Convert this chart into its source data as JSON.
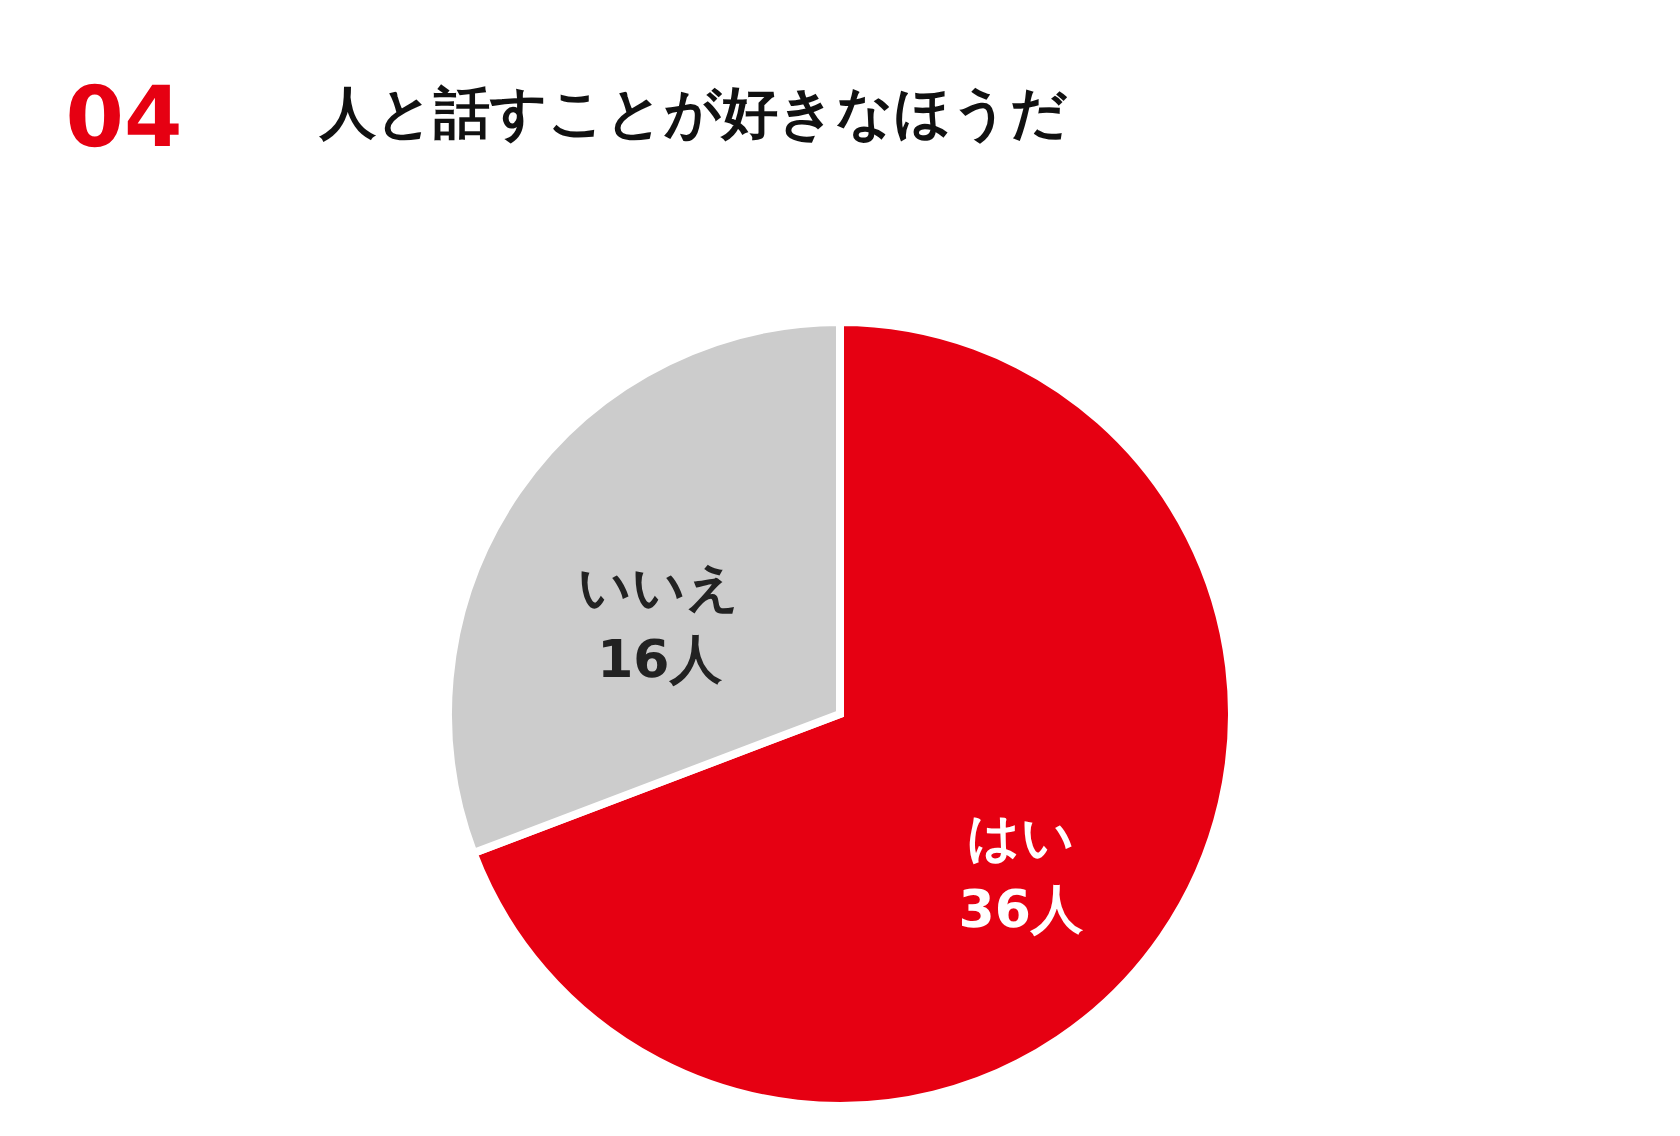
{
  "chart_data": {
    "type": "pie",
    "title": "人と話すことが好きなほうだ",
    "annotations": [
      "04"
    ],
    "categories": [
      "はい",
      "いいえ"
    ],
    "values": [
      36,
      16
    ],
    "colors": [
      "#e60012",
      "#cccccc"
    ],
    "value_labels": [
      "36人",
      "16人"
    ]
  }
}
